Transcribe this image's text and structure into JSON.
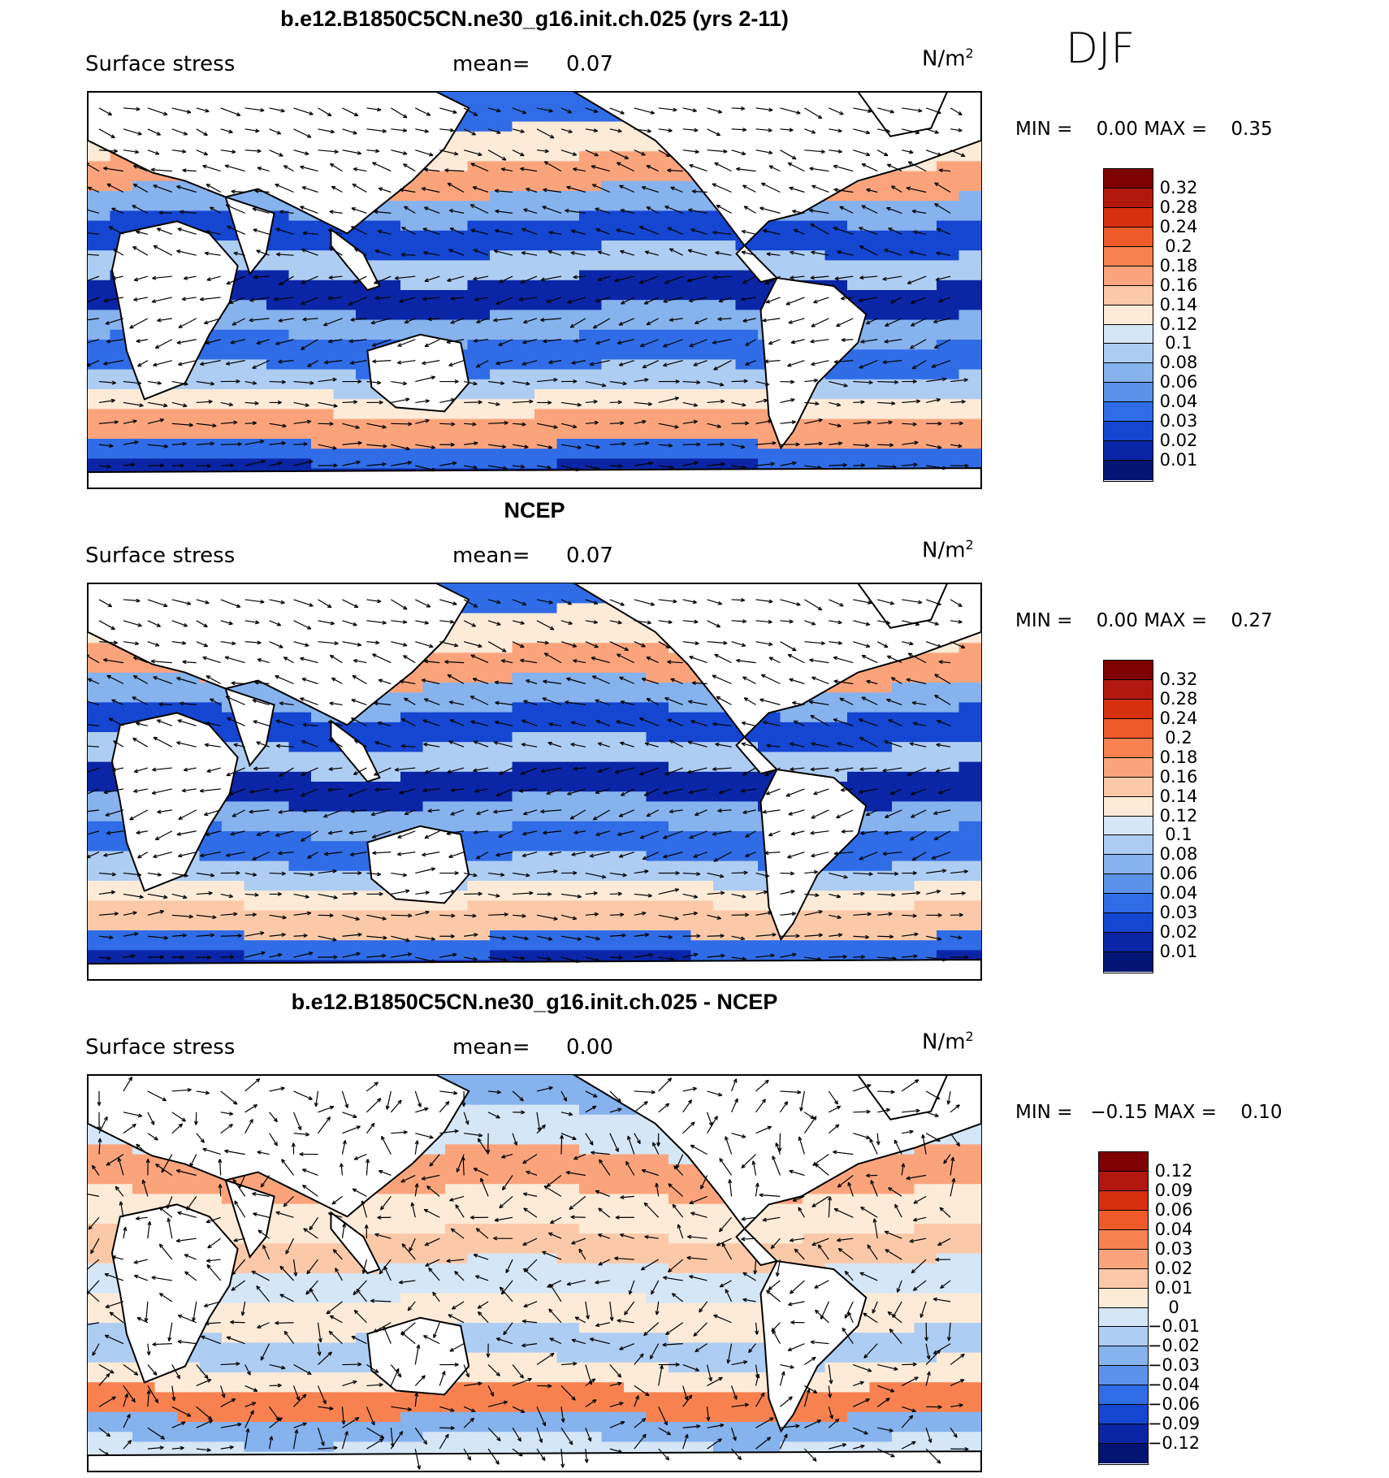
{
  "season": "DJF",
  "panels": [
    {
      "title": "b.e12.B1850C5CN.ne30_g16.init.ch.025 (yrs 2-11)",
      "variable": "Surface stress",
      "mean_label": "mean=",
      "mean_value": "0.07",
      "units_base": "N/m",
      "units_exp": "2",
      "min_label": "MIN =",
      "min_value": "0.00",
      "max_label": "MAX =",
      "max_value": "0.35",
      "colorbar_labels": [
        "0.32",
        "0.28",
        "0.24",
        "0.2",
        "0.18",
        "0.16",
        "0.14",
        "0.12",
        "0.1",
        "0.08",
        "0.06",
        "0.04",
        "0.03",
        "0.02",
        "0.01"
      ]
    },
    {
      "title": "NCEP",
      "variable": "Surface stress",
      "mean_label": "mean=",
      "mean_value": "0.07",
      "units_base": "N/m",
      "units_exp": "2",
      "min_label": "MIN =",
      "min_value": "0.00",
      "max_label": "MAX =",
      "max_value": "0.27",
      "colorbar_labels": [
        "0.32",
        "0.28",
        "0.24",
        "0.2",
        "0.18",
        "0.16",
        "0.14",
        "0.12",
        "0.1",
        "0.08",
        "0.06",
        "0.04",
        "0.03",
        "0.02",
        "0.01"
      ]
    },
    {
      "title": "b.e12.B1850C5CN.ne30_g16.init.ch.025 - NCEP",
      "variable": "Surface stress",
      "mean_label": "mean=",
      "mean_value": "0.00",
      "units_base": "N/m",
      "units_exp": "2",
      "min_label": "MIN =",
      "min_value": "−0.15",
      "max_label": "MAX =",
      "max_value": "0.10",
      "colorbar_labels": [
        "0.12",
        "0.09",
        "0.06",
        "0.04",
        "0.03",
        "0.02",
        "0.01",
        "0",
        "−0.01",
        "−0.02",
        "−0.03",
        "−0.04",
        "−0.06",
        "−0.09",
        "−0.12"
      ]
    }
  ],
  "colorbar_colors": [
    "#7f0000",
    "#b2180e",
    "#d7300f",
    "#ef5a2a",
    "#f78250",
    "#fba47c",
    "#fcc9a8",
    "#fdebd8",
    "#d5e6f7",
    "#aecdf2",
    "#86b2ee",
    "#5a92ea",
    "#2f6ce6",
    "#1446d2",
    "#0a26a6",
    "#031574"
  ]
}
